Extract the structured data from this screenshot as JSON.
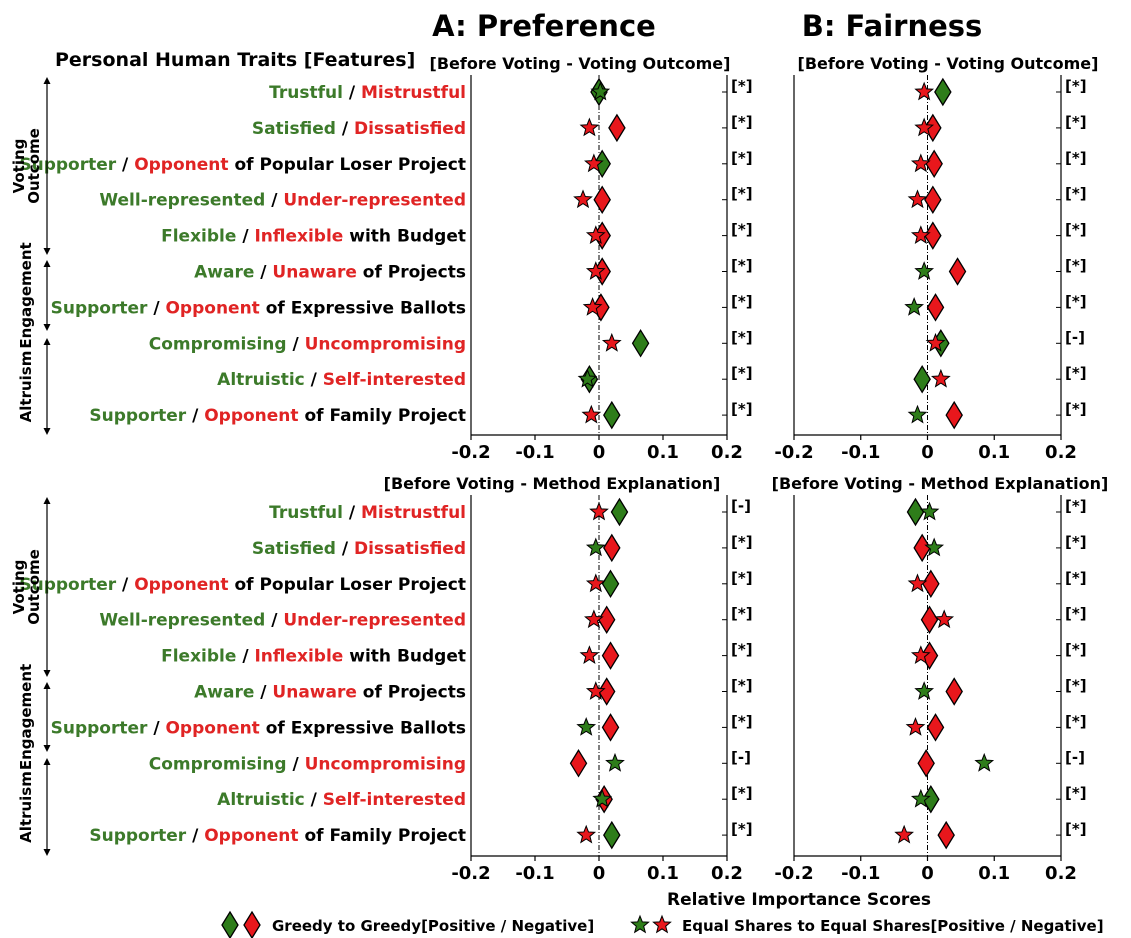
{
  "column_titles": [
    "A: Preference",
    "B: Fairness"
  ],
  "features_heading": "Personal Human Traits [Features]",
  "groups": [
    "Voting Outcome",
    "Engagement",
    "Altruism"
  ],
  "features": [
    {
      "pos": "Trustful",
      "neg": "Mistrustful",
      "suffix": ""
    },
    {
      "pos": "Satisfied",
      "neg": "Dissatisfied",
      "suffix": ""
    },
    {
      "pos": "Supporter",
      "neg": "Opponent",
      "suffix": "of Popular Loser Project"
    },
    {
      "pos": "Well-represented",
      "neg": "Under-represented",
      "suffix": ""
    },
    {
      "pos": "Flexible",
      "neg": "Inflexible",
      "suffix": "with Budget"
    },
    {
      "pos": "Aware",
      "neg": "Unaware",
      "suffix": "of Projects"
    },
    {
      "pos": "Supporter",
      "neg": "Opponent",
      "suffix": "of Expressive Ballots"
    },
    {
      "pos": "Compromising",
      "neg": "Uncompromising",
      "suffix": ""
    },
    {
      "pos": "Altruistic",
      "neg": "Self-interested",
      "suffix": ""
    },
    {
      "pos": "Supporter",
      "neg": "Opponent",
      "suffix": "of Family Project"
    }
  ],
  "x_ticks": [
    "-0.2",
    "-0.1",
    "0",
    "0.1",
    "0.2"
  ],
  "xlabel": "Relative Importance Scores",
  "legend": [
    {
      "marker": "diamond",
      "label": "Greedy to Greedy",
      "suffix": "[Positive / Negative]"
    },
    {
      "marker": "star",
      "label": "Equal Shares to Equal Shares",
      "suffix": "[Positive / Negative]"
    }
  ],
  "colors": {
    "positive": "#2e7d1a",
    "negative": "#e8171c",
    "label_pos": "#3c7a2a",
    "label_neg": "#e02424"
  },
  "chart_data": [
    {
      "type": "scatter",
      "title": "[Before Voting - Voting Outcome]",
      "xlim": [
        -0.2,
        0.2
      ],
      "significance": [
        "[*]",
        "[*]",
        "[*]",
        "[*]",
        "[*]",
        "[*]",
        "[*]",
        "[*]",
        "[*]",
        "[*]"
      ],
      "series": [
        {
          "name": "Greedy to Greedy",
          "marker": "diamond",
          "values": [
            0.0,
            0.028,
            0.005,
            0.005,
            0.005,
            0.005,
            0.003,
            0.065,
            -0.015,
            0.02
          ],
          "signs": [
            "pos",
            "neg",
            "pos",
            "neg",
            "neg",
            "neg",
            "neg",
            "pos",
            "pos",
            "pos"
          ]
        },
        {
          "name": "Equal Shares to Equal Shares",
          "marker": "star",
          "values": [
            0.002,
            -0.015,
            -0.008,
            -0.025,
            -0.005,
            -0.005,
            -0.01,
            0.02,
            -0.018,
            -0.012
          ],
          "signs": [
            "pos",
            "neg",
            "neg",
            "neg",
            "neg",
            "neg",
            "neg",
            "neg",
            "pos",
            "neg"
          ]
        }
      ]
    },
    {
      "type": "scatter",
      "title": "[Before Voting - Voting Outcome]",
      "xlim": [
        -0.2,
        0.2
      ],
      "significance": [
        "[*]",
        "[*]",
        "[*]",
        "[*]",
        "[*]",
        "[*]",
        "[*]",
        "[-]",
        "[*]",
        "[*]"
      ],
      "series": [
        {
          "name": "Greedy to Greedy",
          "marker": "diamond",
          "values": [
            0.023,
            0.008,
            0.01,
            0.008,
            0.008,
            0.045,
            0.012,
            0.02,
            -0.008,
            0.04
          ],
          "signs": [
            "pos",
            "neg",
            "neg",
            "neg",
            "neg",
            "neg",
            "neg",
            "pos",
            "pos",
            "neg"
          ]
        },
        {
          "name": "Equal Shares to Equal Shares",
          "marker": "star",
          "values": [
            -0.005,
            -0.005,
            -0.01,
            -0.015,
            -0.01,
            -0.005,
            -0.02,
            0.012,
            0.02,
            -0.015
          ],
          "signs": [
            "neg",
            "neg",
            "neg",
            "neg",
            "neg",
            "pos",
            "pos",
            "neg",
            "neg",
            "pos"
          ]
        }
      ]
    },
    {
      "type": "scatter",
      "title": "[Before Voting - Method Explanation]",
      "xlim": [
        -0.2,
        0.2
      ],
      "significance": [
        "[-]",
        "[*]",
        "[*]",
        "[*]",
        "[*]",
        "[*]",
        "[*]",
        "[-]",
        "[*]",
        "[*]"
      ],
      "series": [
        {
          "name": "Greedy to Greedy",
          "marker": "diamond",
          "values": [
            0.032,
            0.02,
            0.018,
            0.012,
            0.018,
            0.012,
            0.018,
            -0.032,
            0.008,
            0.02
          ],
          "signs": [
            "pos",
            "neg",
            "pos",
            "neg",
            "neg",
            "neg",
            "neg",
            "neg",
            "neg",
            "pos"
          ]
        },
        {
          "name": "Equal Shares to Equal Shares",
          "marker": "star",
          "values": [
            0.0,
            -0.005,
            -0.005,
            -0.008,
            -0.015,
            -0.005,
            -0.02,
            0.025,
            0.005,
            -0.02
          ],
          "signs": [
            "neg",
            "pos",
            "neg",
            "neg",
            "neg",
            "neg",
            "pos",
            "pos",
            "pos",
            "neg"
          ]
        }
      ]
    },
    {
      "type": "scatter",
      "title": "[Before Voting - Method Explanation]",
      "xlim": [
        -0.2,
        0.2
      ],
      "significance": [
        "[*]",
        "[*]",
        "[*]",
        "[*]",
        "[*]",
        "[*]",
        "[*]",
        "[-]",
        "[*]",
        "[*]"
      ],
      "series": [
        {
          "name": "Greedy to Greedy",
          "marker": "diamond",
          "values": [
            -0.018,
            -0.008,
            0.005,
            0.003,
            0.003,
            0.04,
            0.012,
            -0.002,
            0.005,
            0.028
          ],
          "signs": [
            "pos",
            "neg",
            "neg",
            "neg",
            "neg",
            "neg",
            "neg",
            "neg",
            "pos",
            "neg"
          ]
        },
        {
          "name": "Equal Shares to Equal Shares",
          "marker": "star",
          "values": [
            0.003,
            0.01,
            -0.015,
            0.025,
            -0.01,
            -0.005,
            -0.018,
            0.085,
            -0.01,
            -0.035
          ],
          "signs": [
            "pos",
            "pos",
            "neg",
            "neg",
            "neg",
            "pos",
            "neg",
            "pos",
            "pos",
            "neg"
          ]
        }
      ]
    }
  ]
}
